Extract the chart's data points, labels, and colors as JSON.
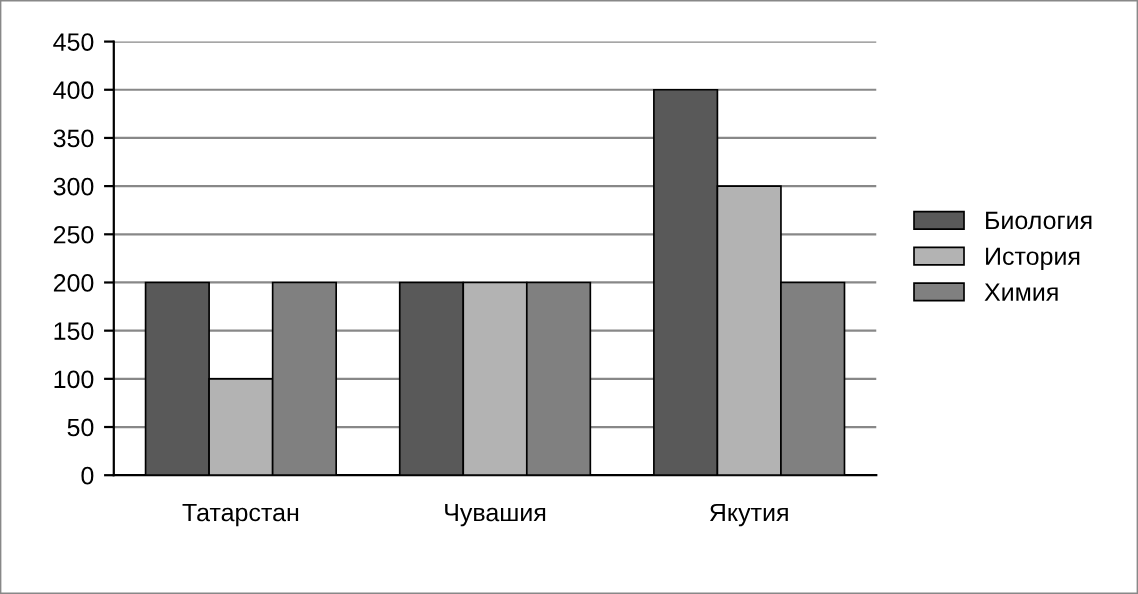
{
  "chart_data": {
    "type": "bar",
    "categories": [
      "Татарстан",
      "Чувашия",
      "Якутия"
    ],
    "series": [
      {
        "name": "Биология",
        "color": "#595959",
        "values": [
          200,
          200,
          400
        ]
      },
      {
        "name": "История",
        "color": "#b3b3b3",
        "values": [
          100,
          200,
          300
        ]
      },
      {
        "name": "Химия",
        "color": "#808080",
        "values": [
          200,
          200,
          200
        ]
      }
    ],
    "ylim": [
      0,
      450
    ],
    "yticks": [
      0,
      50,
      100,
      150,
      200,
      250,
      300,
      350,
      400,
      450
    ],
    "grid": "y",
    "legend": "right"
  }
}
